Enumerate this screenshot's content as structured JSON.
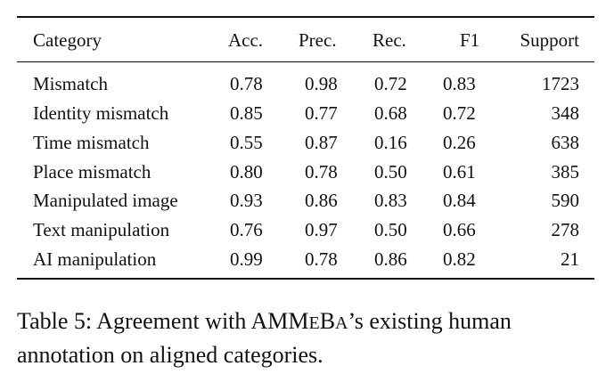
{
  "table": {
    "headers": {
      "category": "Category",
      "acc": "Acc.",
      "prec": "Prec.",
      "rec": "Rec.",
      "f1": "F1",
      "support": "Support"
    },
    "rows": [
      {
        "category": "Mismatch",
        "acc": "0.78",
        "prec": "0.98",
        "rec": "0.72",
        "f1": "0.83",
        "support": "1723"
      },
      {
        "category": "Identity mismatch",
        "acc": "0.85",
        "prec": "0.77",
        "rec": "0.68",
        "f1": "0.72",
        "support": "348"
      },
      {
        "category": "Time mismatch",
        "acc": "0.55",
        "prec": "0.87",
        "rec": "0.16",
        "f1": "0.26",
        "support": "638"
      },
      {
        "category": "Place mismatch",
        "acc": "0.80",
        "prec": "0.78",
        "rec": "0.50",
        "f1": "0.61",
        "support": "385"
      },
      {
        "category": "Manipulated image",
        "acc": "0.93",
        "prec": "0.86",
        "rec": "0.83",
        "f1": "0.84",
        "support": "590"
      },
      {
        "category": "Text manipulation",
        "acc": "0.76",
        "prec": "0.97",
        "rec": "0.50",
        "f1": "0.66",
        "support": "278"
      },
      {
        "category": "AI manipulation",
        "acc": "0.99",
        "prec": "0.78",
        "rec": "0.86",
        "f1": "0.82",
        "support": "21"
      }
    ]
  },
  "caption": {
    "label": "Table 5:",
    "text_before": "Agreement with ",
    "name_a": "AMM",
    "name_b": "E",
    "name_c": "B",
    "name_d": "A",
    "text_after": "’s existing human annotation on aligned categories."
  }
}
